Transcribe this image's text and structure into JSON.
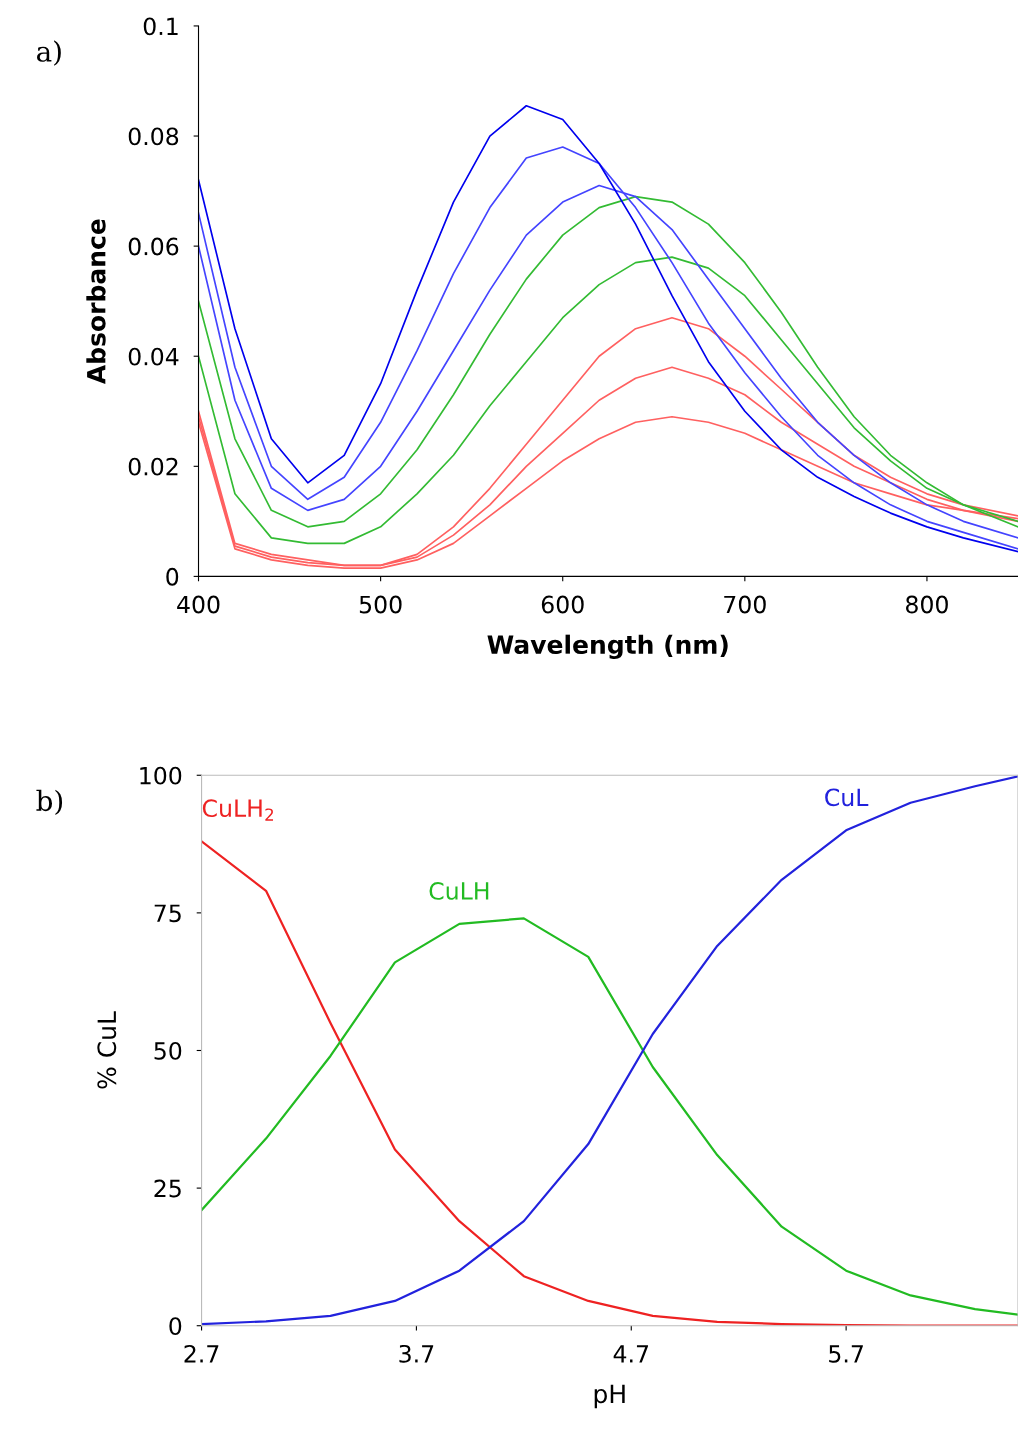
{
  "chart_data": [
    {
      "type": "line",
      "xlabel": "Wavelength (nm)",
      "ylabel": "Absorbance",
      "annotations": [
        "a)"
      ],
      "x": [
        400,
        420,
        440,
        460,
        480,
        500,
        520,
        540,
        560,
        580,
        600,
        620,
        640,
        660,
        680,
        700,
        720,
        740,
        760,
        780,
        800,
        820,
        850
      ],
      "series": [
        {
          "color": "#ff6060",
          "values": [
            0.028,
            0.005,
            0.003,
            0.002,
            0.0015,
            0.0015,
            0.003,
            0.006,
            0.011,
            0.016,
            0.021,
            0.025,
            0.028,
            0.029,
            0.028,
            0.026,
            0.023,
            0.02,
            0.017,
            0.015,
            0.013,
            0.012,
            0.01
          ]
        },
        {
          "color": "#ff6060",
          "values": [
            0.029,
            0.0055,
            0.0035,
            0.0025,
            0.002,
            0.002,
            0.0035,
            0.0075,
            0.013,
            0.02,
            0.026,
            0.032,
            0.036,
            0.038,
            0.036,
            0.033,
            0.028,
            0.024,
            0.02,
            0.017,
            0.014,
            0.012,
            0.0105
          ]
        },
        {
          "color": "#ff6060",
          "values": [
            0.03,
            0.006,
            0.004,
            0.003,
            0.002,
            0.002,
            0.004,
            0.009,
            0.016,
            0.024,
            0.032,
            0.04,
            0.045,
            0.047,
            0.045,
            0.04,
            0.034,
            0.028,
            0.022,
            0.018,
            0.015,
            0.013,
            0.011
          ]
        },
        {
          "color": "#33bb33",
          "values": [
            0.04,
            0.015,
            0.007,
            0.006,
            0.006,
            0.009,
            0.015,
            0.022,
            0.031,
            0.039,
            0.047,
            0.053,
            0.057,
            0.058,
            0.056,
            0.051,
            0.043,
            0.035,
            0.027,
            0.021,
            0.016,
            0.013,
            0.01
          ]
        },
        {
          "color": "#33bb33",
          "values": [
            0.05,
            0.025,
            0.012,
            0.009,
            0.01,
            0.015,
            0.023,
            0.033,
            0.044,
            0.054,
            0.062,
            0.067,
            0.069,
            0.068,
            0.064,
            0.057,
            0.048,
            0.038,
            0.029,
            0.022,
            0.017,
            0.013,
            0.009
          ]
        },
        {
          "color": "#4444ff",
          "values": [
            0.06,
            0.032,
            0.016,
            0.012,
            0.014,
            0.02,
            0.03,
            0.041,
            0.052,
            0.062,
            0.068,
            0.071,
            0.069,
            0.063,
            0.054,
            0.045,
            0.036,
            0.028,
            0.022,
            0.017,
            0.013,
            0.01,
            0.007
          ]
        },
        {
          "color": "#4444ff",
          "values": [
            0.066,
            0.038,
            0.02,
            0.014,
            0.018,
            0.028,
            0.041,
            0.055,
            0.067,
            0.076,
            0.078,
            0.075,
            0.067,
            0.057,
            0.046,
            0.037,
            0.029,
            0.022,
            0.017,
            0.013,
            0.01,
            0.008,
            0.005
          ]
        },
        {
          "color": "#0000ee",
          "values": [
            0.072,
            0.045,
            0.025,
            0.017,
            0.022,
            0.035,
            0.052,
            0.068,
            0.08,
            0.0855,
            0.083,
            0.075,
            0.064,
            0.051,
            0.039,
            0.03,
            0.023,
            0.018,
            0.0145,
            0.0115,
            0.009,
            0.007,
            0.0045
          ]
        }
      ],
      "xlim": [
        400,
        850
      ],
      "xticks": [
        400,
        500,
        600,
        700,
        800
      ],
      "ylim": [
        0,
        0.1
      ],
      "yticks": [
        0,
        0.02,
        0.04,
        0.06,
        0.08,
        0.1
      ],
      "grid": false,
      "legend": false
    },
    {
      "type": "line",
      "xlabel": "pH",
      "ylabel": "% CuL",
      "annotations": [
        "b)"
      ],
      "x": [
        2.7,
        3.0,
        3.3,
        3.6,
        3.9,
        4.2,
        4.5,
        4.8,
        5.1,
        5.4,
        5.7,
        6.0,
        6.3,
        6.5
      ],
      "series": [
        {
          "name": "CuLH$_{2}$",
          "color": "#ee2222",
          "values": [
            88,
            79,
            55,
            32,
            19,
            9,
            4.5,
            1.8,
            0.7,
            0.3,
            0.1,
            0,
            0,
            0
          ]
        },
        {
          "name": "CuLH",
          "color": "#22bb22",
          "values": [
            21,
            34,
            49,
            66,
            73,
            74,
            67,
            47,
            31,
            18,
            10,
            5.5,
            3,
            2
          ]
        },
        {
          "name": "CuL",
          "color": "#2222dd",
          "values": [
            0.3,
            0.8,
            1.8,
            4.5,
            10,
            19,
            33,
            53,
            69,
            81,
            90,
            95,
            98,
            99.8
          ]
        }
      ],
      "xlim": [
        2.7,
        6.5
      ],
      "xticks": [
        2.7,
        3.7,
        4.7,
        5.7
      ],
      "ylim": [
        0,
        100
      ],
      "yticks": [
        0,
        25,
        50,
        75,
        100
      ],
      "grid": false,
      "legend": false
    }
  ]
}
